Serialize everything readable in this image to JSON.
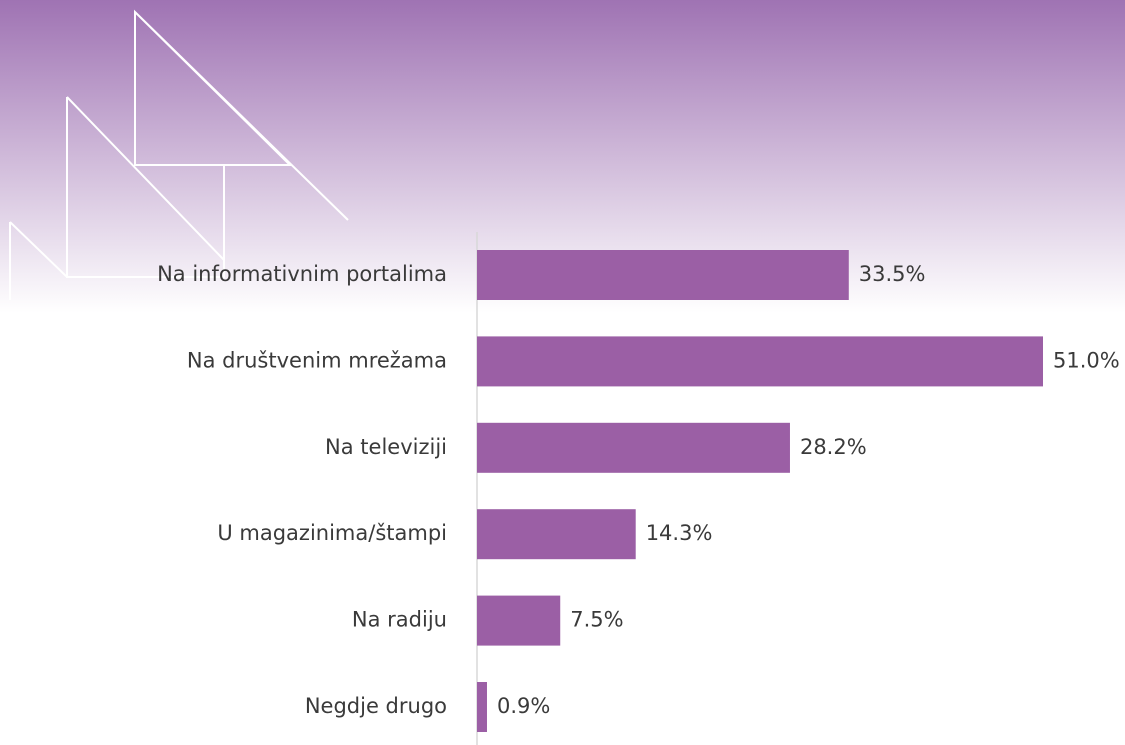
{
  "chart_data": {
    "type": "hbar",
    "categories": [
      "Na informativnim portalima",
      "Na društvenim mrežama",
      "Na televiziji",
      "U magazinima/štampi",
      "Na radiju",
      "Negdje drugo"
    ],
    "values": [
      33.5,
      51.0,
      28.2,
      14.3,
      7.5,
      0.9
    ],
    "value_labels": [
      "33.5%",
      "51.0%",
      "28.2%",
      "14.3%",
      "7.5%",
      "0.9%"
    ],
    "color": "#9b5fa5"
  }
}
